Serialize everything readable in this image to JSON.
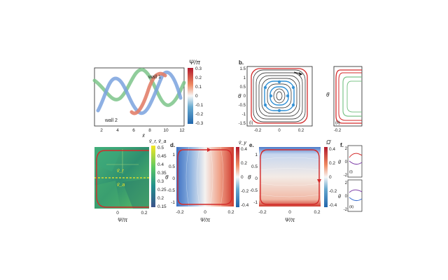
{
  "panels": {
    "a": {
      "annotations": [
        "wall 1",
        "wall 2"
      ],
      "xlabel": "x̄",
      "xticks": [
        "2",
        "4",
        "6",
        "8",
        "10",
        "12"
      ],
      "colorbar": {
        "label": "Ψ/π",
        "ticks": [
          "0.3",
          "0.2",
          "0.1",
          "0",
          "-0.1",
          "-0.2",
          "-0.3"
        ]
      }
    },
    "b": {
      "label": "b.",
      "ylabel": "θ̇",
      "subpanels": [
        {
          "tag": "(i)",
          "xticks": [
            "-0.2",
            "0",
            "0.2"
          ],
          "yticks": [
            "1.5",
            "1",
            "0.5",
            "0",
            "-0.5",
            "-1",
            "-1.5"
          ]
        },
        {
          "tag": "(ii)",
          "xticks": [
            "-0.2"
          ]
        }
      ]
    },
    "c": {
      "colorbar_label": "v̄_r, v̄_a",
      "colorbar_ticks": [
        "0.5",
        "0.45",
        "0.4",
        "0.35",
        "0.3",
        "0.25",
        "0.2",
        "0.15"
      ],
      "annotations": [
        "v̄_r",
        "v̄_a"
      ],
      "xticks": [
        "0",
        "0.2"
      ],
      "xlabel": "Ψ/π"
    },
    "d": {
      "label": "d.",
      "ylabel": "θ̇",
      "xticks": [
        "-0.2",
        "0",
        "0.2"
      ],
      "yticks": [
        "1",
        "0.5",
        "0",
        "-0.5",
        "-1"
      ],
      "xlabel": "Ψ/π",
      "colorbar_label": "v̄_y",
      "colorbar_ticks": [
        "0.4",
        "0.2",
        "0",
        "-0.2",
        "-0.4"
      ]
    },
    "e": {
      "label": "e.",
      "ylabel": "θ̇",
      "xticks": [
        "-0.2",
        "0",
        "0.2"
      ],
      "yticks": [
        "1",
        "0.5",
        "0",
        "-0.5",
        "-1"
      ],
      "xlabel": "Ψ/π",
      "colorbar_label": "Ω̄",
      "colorbar_ticks": [
        "0.4",
        "0.2",
        "0",
        "-0.2",
        "-0.4"
      ]
    },
    "f": {
      "label": "f.",
      "ylabel": "θ̇",
      "yticks": [
        "2",
        "0",
        "-2"
      ],
      "subpanel_tags": [
        "(i)",
        "(ii)"
      ],
      "yticks_lower": [
        "2",
        "0",
        "-2"
      ]
    }
  },
  "colors": {
    "red": "#d42a2a",
    "blue": "#3a6fd0",
    "green": "#3f9f5a",
    "black": "#1a1a1a",
    "cyan": "#2f8fd4"
  }
}
